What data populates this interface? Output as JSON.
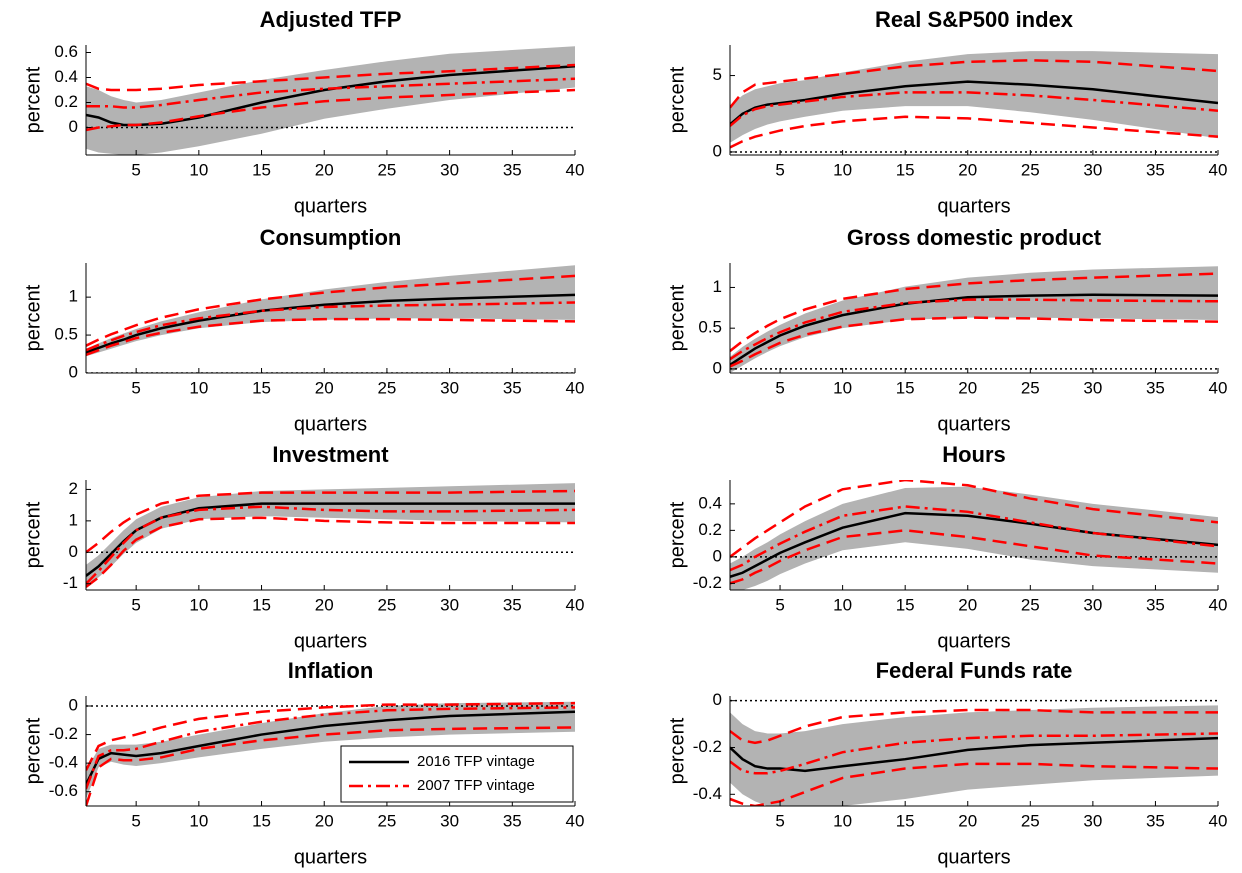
{
  "chart_data": [
    {
      "type": "line",
      "title": "Adjusted TFP",
      "xlabel": "quarters",
      "ylabel": "percent",
      "x": [
        1,
        2,
        3,
        4,
        5,
        7,
        10,
        15,
        20,
        25,
        30,
        40
      ],
      "xlim": [
        1,
        40
      ],
      "xticks": [
        5,
        10,
        15,
        20,
        25,
        30,
        35,
        40
      ],
      "ylim": [
        -0.22,
        0.66
      ],
      "yticks": [
        0,
        0.2,
        0.4,
        0.6
      ],
      "zero_line": true,
      "band": {
        "color": "#b3b3b3",
        "lower": [
          -0.17,
          -0.2,
          -0.21,
          -0.22,
          -0.22,
          -0.2,
          -0.15,
          -0.05,
          0.07,
          0.15,
          0.22,
          0.32
        ],
        "upper": [
          0.33,
          0.3,
          0.25,
          0.22,
          0.2,
          0.22,
          0.28,
          0.38,
          0.46,
          0.53,
          0.59,
          0.65
        ]
      },
      "series": [
        {
          "color": "#000000",
          "style": "solid",
          "values": [
            0.1,
            0.08,
            0.04,
            0.02,
            0.02,
            0.03,
            0.08,
            0.2,
            0.3,
            0.37,
            0.42,
            0.49
          ]
        },
        {
          "color": "#ff0000",
          "style": "dashdot",
          "values": [
            0.17,
            0.17,
            0.17,
            0.16,
            0.16,
            0.18,
            0.22,
            0.28,
            0.31,
            0.33,
            0.35,
            0.39
          ]
        },
        {
          "color": "#ff0000",
          "style": "dashed",
          "values": [
            0.35,
            0.31,
            0.3,
            0.3,
            0.3,
            0.31,
            0.34,
            0.37,
            0.4,
            0.43,
            0.45,
            0.5
          ]
        },
        {
          "color": "#ff0000",
          "style": "dashed",
          "values": [
            -0.02,
            0,
            0.01,
            0.02,
            0.02,
            0.04,
            0.09,
            0.16,
            0.21,
            0.24,
            0.26,
            0.3
          ]
        }
      ]
    },
    {
      "type": "line",
      "title": "Real S&P500 index",
      "xlabel": "quarters",
      "ylabel": "percent",
      "x": [
        1,
        2,
        3,
        4,
        5,
        7,
        10,
        15,
        20,
        25,
        30,
        40
      ],
      "xlim": [
        1,
        40
      ],
      "xticks": [
        5,
        10,
        15,
        20,
        25,
        30,
        35,
        40
      ],
      "ylim": [
        -0.2,
        7
      ],
      "yticks": [
        0,
        5
      ],
      "zero_line": true,
      "band": {
        "color": "#b3b3b3",
        "lower": [
          0.6,
          1.1,
          1.5,
          1.8,
          2,
          2.3,
          2.7,
          3,
          3,
          2.6,
          2.1,
          0.9
        ],
        "upper": [
          3,
          3.7,
          4.1,
          4.3,
          4.5,
          4.7,
          5.2,
          5.9,
          6.4,
          6.6,
          6.6,
          6.4
        ]
      },
      "series": [
        {
          "color": "#000000",
          "style": "solid",
          "values": [
            1.8,
            2.5,
            2.9,
            3.1,
            3.2,
            3.4,
            3.8,
            4.3,
            4.6,
            4.4,
            4.1,
            3.2
          ]
        },
        {
          "color": "#ff0000",
          "style": "dashdot",
          "values": [
            1.7,
            2.4,
            2.8,
            3,
            3.1,
            3.3,
            3.6,
            3.9,
            3.9,
            3.7,
            3.4,
            2.7
          ]
        },
        {
          "color": "#ff0000",
          "style": "dashed",
          "values": [
            2.9,
            3.9,
            4.4,
            4.5,
            4.6,
            4.8,
            5.1,
            5.6,
            5.9,
            6,
            5.9,
            5.3
          ]
        },
        {
          "color": "#ff0000",
          "style": "dashed",
          "values": [
            0.3,
            0.7,
            1,
            1.2,
            1.4,
            1.7,
            2,
            2.3,
            2.2,
            1.9,
            1.6,
            1
          ]
        }
      ]
    },
    {
      "type": "line",
      "title": "Consumption",
      "xlabel": "quarters",
      "ylabel": "percent",
      "x": [
        1,
        2,
        3,
        4,
        5,
        7,
        10,
        15,
        20,
        25,
        30,
        40
      ],
      "xlim": [
        1,
        40
      ],
      "xticks": [
        5,
        10,
        15,
        20,
        25,
        30,
        35,
        40
      ],
      "ylim": [
        0,
        1.45
      ],
      "yticks": [
        0,
        0.5,
        1
      ],
      "zero_line": true,
      "band": {
        "color": "#b3b3b3",
        "lower": [
          0.22,
          0.27,
          0.32,
          0.37,
          0.42,
          0.5,
          0.59,
          0.67,
          0.7,
          0.72,
          0.72,
          0.7
        ],
        "upper": [
          0.32,
          0.39,
          0.46,
          0.52,
          0.58,
          0.68,
          0.8,
          0.97,
          1.1,
          1.2,
          1.28,
          1.42
        ]
      },
      "series": [
        {
          "color": "#000000",
          "style": "solid",
          "values": [
            0.27,
            0.33,
            0.39,
            0.44,
            0.5,
            0.59,
            0.69,
            0.82,
            0.9,
            0.95,
            0.98,
            1.03
          ]
        },
        {
          "color": "#ff0000",
          "style": "dashdot",
          "values": [
            0.3,
            0.37,
            0.43,
            0.49,
            0.54,
            0.63,
            0.72,
            0.82,
            0.87,
            0.89,
            0.9,
            0.93
          ]
        },
        {
          "color": "#ff0000",
          "style": "dashed",
          "values": [
            0.36,
            0.44,
            0.51,
            0.57,
            0.63,
            0.73,
            0.84,
            0.97,
            1.06,
            1.13,
            1.18,
            1.28
          ]
        },
        {
          "color": "#ff0000",
          "style": "dashed",
          "values": [
            0.24,
            0.3,
            0.36,
            0.41,
            0.46,
            0.53,
            0.61,
            0.69,
            0.71,
            0.71,
            0.7,
            0.68
          ]
        }
      ]
    },
    {
      "type": "line",
      "title": "Gross domestic product",
      "xlabel": "quarters",
      "ylabel": "percent",
      "x": [
        1,
        2,
        3,
        4,
        5,
        7,
        10,
        15,
        20,
        25,
        30,
        40
      ],
      "xlim": [
        1,
        40
      ],
      "xticks": [
        5,
        10,
        15,
        20,
        25,
        30,
        35,
        40
      ],
      "ylim": [
        -0.05,
        1.3
      ],
      "yticks": [
        0,
        0.5,
        1
      ],
      "zero_line": true,
      "band": {
        "color": "#b3b3b3",
        "lower": [
          -0.05,
          0.04,
          0.13,
          0.21,
          0.28,
          0.39,
          0.5,
          0.6,
          0.63,
          0.63,
          0.62,
          0.6
        ],
        "upper": [
          0.15,
          0.27,
          0.37,
          0.46,
          0.54,
          0.68,
          0.84,
          1.01,
          1.12,
          1.18,
          1.22,
          1.26
        ]
      },
      "series": [
        {
          "color": "#000000",
          "style": "solid",
          "values": [
            0.05,
            0.15,
            0.25,
            0.33,
            0.41,
            0.53,
            0.66,
            0.8,
            0.88,
            0.9,
            0.91,
            0.9
          ]
        },
        {
          "color": "#ff0000",
          "style": "dashdot",
          "values": [
            0.12,
            0.22,
            0.3,
            0.38,
            0.45,
            0.57,
            0.7,
            0.81,
            0.85,
            0.85,
            0.84,
            0.83
          ]
        },
        {
          "color": "#ff0000",
          "style": "dashed",
          "values": [
            0.22,
            0.34,
            0.44,
            0.53,
            0.61,
            0.73,
            0.86,
            0.98,
            1.05,
            1.09,
            1.12,
            1.17
          ]
        },
        {
          "color": "#ff0000",
          "style": "dashed",
          "values": [
            0.03,
            0.1,
            0.18,
            0.25,
            0.32,
            0.42,
            0.52,
            0.61,
            0.63,
            0.62,
            0.6,
            0.58
          ]
        }
      ]
    },
    {
      "type": "line",
      "title": "Investment",
      "xlabel": "quarters",
      "ylabel": "percent",
      "x": [
        1,
        2,
        3,
        4,
        5,
        7,
        10,
        15,
        20,
        25,
        30,
        40
      ],
      "xlim": [
        1,
        40
      ],
      "xticks": [
        5,
        10,
        15,
        20,
        25,
        30,
        35,
        40
      ],
      "ylim": [
        -1.2,
        2.3
      ],
      "yticks": [
        -1,
        0,
        1,
        2
      ],
      "zero_line": true,
      "band": {
        "color": "#b3b3b3",
        "lower": [
          -1.1,
          -0.8,
          -0.45,
          -0.05,
          0.3,
          0.75,
          1.05,
          1.15,
          1.1,
          1.05,
          1,
          0.95
        ],
        "upper": [
          -0.4,
          -0.1,
          0.3,
          0.7,
          1.05,
          1.45,
          1.75,
          1.95,
          2,
          2.05,
          2.1,
          2.2
        ]
      },
      "series": [
        {
          "color": "#000000",
          "style": "solid",
          "values": [
            -0.75,
            -0.45,
            -0.05,
            0.35,
            0.7,
            1.1,
            1.4,
            1.55,
            1.55,
            1.55,
            1.55,
            1.55
          ]
        },
        {
          "color": "#ff0000",
          "style": "dashdot",
          "values": [
            -1,
            -0.6,
            -0.15,
            0.3,
            0.7,
            1.1,
            1.35,
            1.45,
            1.35,
            1.3,
            1.3,
            1.35
          ]
        },
        {
          "color": "#ff0000",
          "style": "dashed",
          "values": [
            0,
            0.3,
            0.65,
            0.95,
            1.2,
            1.55,
            1.8,
            1.9,
            1.9,
            1.9,
            1.9,
            1.95
          ]
        },
        {
          "color": "#ff0000",
          "style": "dashed",
          "values": [
            -1.1,
            -0.8,
            -0.4,
            0.05,
            0.4,
            0.8,
            1.05,
            1.1,
            1,
            0.95,
            0.93,
            0.93
          ]
        }
      ]
    },
    {
      "type": "line",
      "title": "Hours",
      "xlabel": "quarters",
      "ylabel": "percent",
      "x": [
        1,
        2,
        3,
        4,
        5,
        7,
        10,
        15,
        20,
        25,
        30,
        40
      ],
      "xlim": [
        1,
        40
      ],
      "xticks": [
        5,
        10,
        15,
        20,
        25,
        30,
        35,
        40
      ],
      "ylim": [
        -0.25,
        0.58
      ],
      "yticks": [
        -0.2,
        0,
        0.2,
        0.4
      ],
      "zero_line": true,
      "band": {
        "color": "#b3b3b3",
        "lower": [
          -0.25,
          -0.25,
          -0.22,
          -0.18,
          -0.13,
          -0.05,
          0.05,
          0.11,
          0.06,
          -0.02,
          -0.07,
          -0.12
        ],
        "upper": [
          -0.05,
          0,
          0.06,
          0.11,
          0.17,
          0.27,
          0.4,
          0.52,
          0.53,
          0.47,
          0.4,
          0.3
        ]
      },
      "series": [
        {
          "color": "#000000",
          "style": "solid",
          "values": [
            -0.15,
            -0.12,
            -0.07,
            -0.02,
            0.03,
            0.11,
            0.22,
            0.33,
            0.31,
            0.25,
            0.18,
            0.09
          ]
        },
        {
          "color": "#ff0000",
          "style": "dashdot",
          "values": [
            -0.1,
            -0.06,
            0,
            0.05,
            0.1,
            0.19,
            0.31,
            0.38,
            0.34,
            0.26,
            0.18,
            0.08
          ]
        },
        {
          "color": "#ff0000",
          "style": "dashed",
          "values": [
            0,
            0.07,
            0.14,
            0.2,
            0.26,
            0.38,
            0.51,
            0.58,
            0.54,
            0.44,
            0.36,
            0.26
          ]
        },
        {
          "color": "#ff0000",
          "style": "dashed",
          "values": [
            -0.2,
            -0.17,
            -0.12,
            -0.08,
            -0.03,
            0.05,
            0.15,
            0.2,
            0.15,
            0.08,
            0.01,
            -0.05
          ]
        }
      ]
    },
    {
      "type": "line",
      "title": "Inflation",
      "xlabel": "quarters",
      "ylabel": "percent",
      "x": [
        1,
        2,
        3,
        4,
        5,
        7,
        10,
        15,
        20,
        25,
        30,
        40
      ],
      "xlim": [
        1,
        40
      ],
      "xticks": [
        5,
        10,
        15,
        20,
        25,
        30,
        35,
        40
      ],
      "ylim": [
        -0.7,
        0.07
      ],
      "yticks": [
        -0.6,
        -0.4,
        -0.2,
        0
      ],
      "zero_line": true,
      "legend": "lower right",
      "band": {
        "color": "#b3b3b3",
        "lower": [
          -0.65,
          -0.43,
          -0.39,
          -0.41,
          -0.42,
          -0.4,
          -0.36,
          -0.3,
          -0.25,
          -0.22,
          -0.2,
          -0.18
        ],
        "upper": [
          -0.45,
          -0.3,
          -0.27,
          -0.27,
          -0.27,
          -0.25,
          -0.2,
          -0.12,
          -0.05,
          0,
          0.02,
          0.03
        ]
      },
      "series": [
        {
          "name": "2016 TFP vintage",
          "color": "#000000",
          "style": "solid",
          "values": [
            -0.55,
            -0.37,
            -0.33,
            -0.34,
            -0.35,
            -0.33,
            -0.28,
            -0.2,
            -0.14,
            -0.1,
            -0.07,
            -0.04
          ]
        },
        {
          "name": "2007 TFP vintage",
          "color": "#ff0000",
          "style": "dashdot",
          "values": [
            -0.58,
            -0.35,
            -0.31,
            -0.31,
            -0.3,
            -0.25,
            -0.18,
            -0.11,
            -0.06,
            -0.03,
            -0.02,
            -0.01
          ]
        },
        {
          "color": "#ff0000",
          "style": "dashed",
          "values": [
            -0.45,
            -0.28,
            -0.24,
            -0.22,
            -0.2,
            -0.15,
            -0.09,
            -0.04,
            -0.01,
            0.01,
            0.01,
            0.02
          ]
        },
        {
          "color": "#ff0000",
          "style": "dashed",
          "values": [
            -0.7,
            -0.43,
            -0.37,
            -0.38,
            -0.38,
            -0.36,
            -0.3,
            -0.24,
            -0.2,
            -0.17,
            -0.16,
            -0.15
          ]
        }
      ]
    },
    {
      "type": "line",
      "title": "Federal Funds rate",
      "xlabel": "quarters",
      "ylabel": "percent",
      "x": [
        1,
        2,
        3,
        4,
        5,
        7,
        10,
        15,
        20,
        25,
        30,
        40
      ],
      "xlim": [
        1,
        40
      ],
      "xticks": [
        5,
        10,
        15,
        20,
        25,
        30,
        35,
        40
      ],
      "ylim": [
        -0.45,
        0.02
      ],
      "yticks": [
        -0.4,
        -0.2,
        0
      ],
      "zero_line": true,
      "band": {
        "color": "#b3b3b3",
        "lower": [
          -0.35,
          -0.4,
          -0.43,
          -0.45,
          -0.46,
          -0.46,
          -0.45,
          -0.42,
          -0.38,
          -0.36,
          -0.34,
          -0.32
        ],
        "upper": [
          -0.05,
          -0.1,
          -0.13,
          -0.14,
          -0.14,
          -0.13,
          -0.1,
          -0.07,
          -0.05,
          -0.04,
          -0.03,
          -0.02
        ]
      },
      "series": [
        {
          "color": "#000000",
          "style": "solid",
          "values": [
            -0.2,
            -0.25,
            -0.28,
            -0.29,
            -0.29,
            -0.3,
            -0.28,
            -0.25,
            -0.21,
            -0.19,
            -0.18,
            -0.16
          ]
        },
        {
          "color": "#ff0000",
          "style": "dashdot",
          "values": [
            -0.26,
            -0.3,
            -0.31,
            -0.31,
            -0.3,
            -0.27,
            -0.22,
            -0.18,
            -0.16,
            -0.15,
            -0.15,
            -0.14
          ]
        },
        {
          "color": "#ff0000",
          "style": "dashed",
          "values": [
            -0.13,
            -0.17,
            -0.18,
            -0.17,
            -0.15,
            -0.11,
            -0.07,
            -0.05,
            -0.04,
            -0.04,
            -0.05,
            -0.05
          ]
        },
        {
          "color": "#ff0000",
          "style": "dashed",
          "values": [
            -0.42,
            -0.44,
            -0.45,
            -0.44,
            -0.43,
            -0.39,
            -0.33,
            -0.29,
            -0.27,
            -0.27,
            -0.28,
            -0.29
          ]
        }
      ]
    }
  ]
}
